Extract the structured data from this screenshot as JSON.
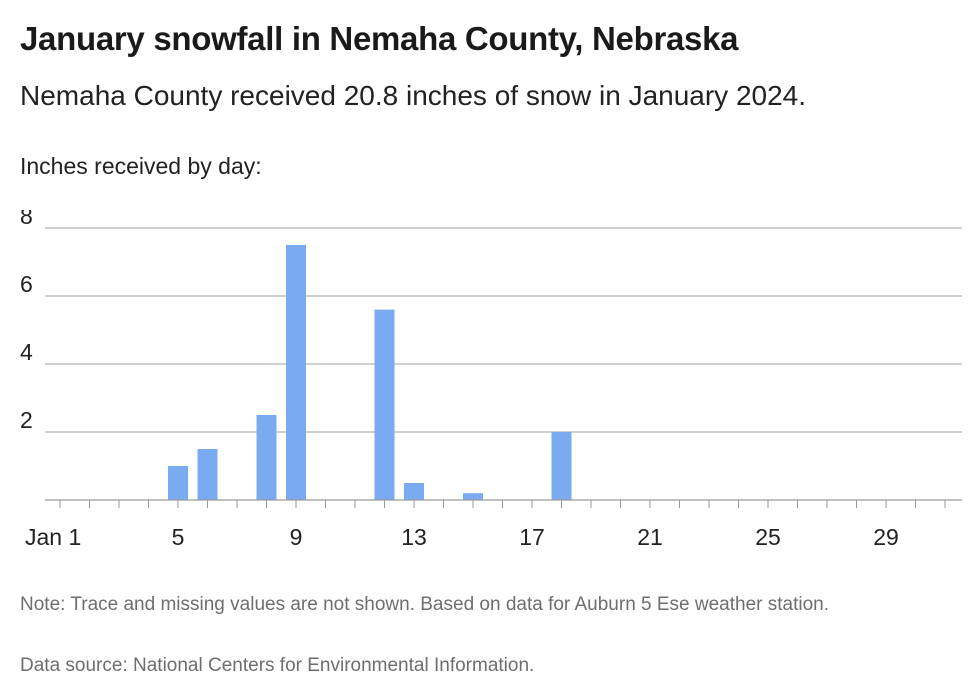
{
  "title": "January snowfall in Nemaha County, Nebraska",
  "subtitle": "Nemaha County received 20.8 inches of snow in January 2024.",
  "note": "Note: Trace and missing values are not shown. Based on data for Auburn 5 Ese weather station.",
  "source": "Data source: National Centers for Environmental Information.",
  "bar_color": "#7aaaf0",
  "grid_color": "#b5b5b5",
  "chart_data": {
    "type": "bar",
    "ylabel": "Inches received by day:",
    "xlabel": "",
    "x": [
      1,
      2,
      3,
      4,
      5,
      6,
      7,
      8,
      9,
      10,
      11,
      12,
      13,
      14,
      15,
      16,
      17,
      18,
      19,
      20,
      21,
      22,
      23,
      24,
      25,
      26,
      27,
      28,
      29,
      30,
      31
    ],
    "values": [
      0,
      0,
      0,
      0,
      1,
      1.5,
      0,
      2.5,
      7.5,
      0,
      0,
      5.6,
      0.5,
      0,
      0.2,
      0,
      0,
      2,
      0,
      0,
      0,
      0,
      0,
      0,
      0,
      0,
      0,
      0,
      0,
      0,
      0
    ],
    "ylim": [
      0,
      8
    ],
    "yticks": [
      "2",
      "4",
      "6",
      "8"
    ],
    "xticks": [
      {
        "day": 1,
        "label": "Jan 1"
      },
      {
        "day": 5,
        "label": "5"
      },
      {
        "day": 9,
        "label": "9"
      },
      {
        "day": 13,
        "label": "13"
      },
      {
        "day": 17,
        "label": "17"
      },
      {
        "day": 21,
        "label": "21"
      },
      {
        "day": 25,
        "label": "25"
      },
      {
        "day": 29,
        "label": "29"
      }
    ],
    "grid": true,
    "legend": "none"
  }
}
